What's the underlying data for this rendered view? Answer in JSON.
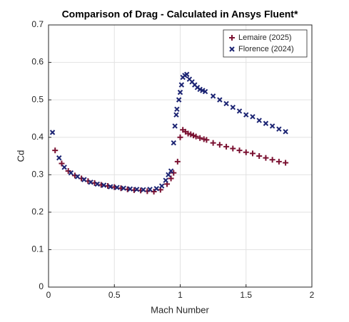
{
  "chart_data": {
    "type": "scatter",
    "title": "Comparison of Drag - Calculated in Ansys Fluent*",
    "xlabel": "Mach Number",
    "ylabel": "Cd",
    "xlim": [
      0,
      2
    ],
    "xticks": [
      0,
      0.5,
      1,
      1.5,
      2
    ],
    "ylim": [
      0,
      0.7
    ],
    "yticks": [
      0,
      0.1,
      0.2,
      0.3,
      0.4,
      0.5,
      0.6,
      0.7
    ],
    "grid": true,
    "legend": "upper-right",
    "series": [
      {
        "name": "Lemaire (2025)",
        "color": "#7b1232",
        "marker": "plus",
        "x": [
          0.05,
          0.1,
          0.15,
          0.2,
          0.25,
          0.3,
          0.35,
          0.4,
          0.45,
          0.5,
          0.55,
          0.6,
          0.65,
          0.7,
          0.75,
          0.8,
          0.85,
          0.9,
          0.93,
          0.95,
          0.98,
          1.0,
          1.02,
          1.04,
          1.06,
          1.08,
          1.1,
          1.12,
          1.15,
          1.18,
          1.2,
          1.25,
          1.3,
          1.35,
          1.4,
          1.45,
          1.5,
          1.55,
          1.6,
          1.65,
          1.7,
          1.75,
          1.8
        ],
        "values": [
          0.365,
          0.33,
          0.31,
          0.298,
          0.29,
          0.283,
          0.278,
          0.273,
          0.27,
          0.267,
          0.264,
          0.261,
          0.259,
          0.258,
          0.256,
          0.255,
          0.26,
          0.275,
          0.29,
          0.305,
          0.335,
          0.4,
          0.42,
          0.415,
          0.41,
          0.408,
          0.405,
          0.402,
          0.398,
          0.395,
          0.393,
          0.385,
          0.38,
          0.375,
          0.37,
          0.365,
          0.36,
          0.357,
          0.35,
          0.345,
          0.34,
          0.335,
          0.332
        ]
      },
      {
        "name": "Florence (2024)",
        "color": "#1c2473",
        "marker": "x",
        "x": [
          0.03,
          0.08,
          0.12,
          0.17,
          0.22,
          0.27,
          0.32,
          0.37,
          0.42,
          0.47,
          0.52,
          0.57,
          0.62,
          0.67,
          0.72,
          0.77,
          0.82,
          0.86,
          0.89,
          0.91,
          0.93,
          0.95,
          0.96,
          0.97,
          0.975,
          0.99,
          1.0,
          1.01,
          1.02,
          1.035,
          1.05,
          1.07,
          1.09,
          1.11,
          1.13,
          1.15,
          1.17,
          1.19,
          1.25,
          1.3,
          1.35,
          1.4,
          1.45,
          1.5,
          1.55,
          1.6,
          1.65,
          1.7,
          1.75,
          1.8
        ],
        "values": [
          0.413,
          0.345,
          0.32,
          0.305,
          0.295,
          0.287,
          0.28,
          0.275,
          0.272,
          0.268,
          0.266,
          0.264,
          0.262,
          0.261,
          0.26,
          0.261,
          0.263,
          0.27,
          0.285,
          0.3,
          0.31,
          0.385,
          0.43,
          0.46,
          0.475,
          0.5,
          0.52,
          0.54,
          0.56,
          0.565,
          0.568,
          0.555,
          0.548,
          0.54,
          0.533,
          0.528,
          0.525,
          0.522,
          0.51,
          0.5,
          0.49,
          0.48,
          0.47,
          0.46,
          0.455,
          0.445,
          0.437,
          0.43,
          0.422,
          0.415
        ]
      }
    ]
  }
}
